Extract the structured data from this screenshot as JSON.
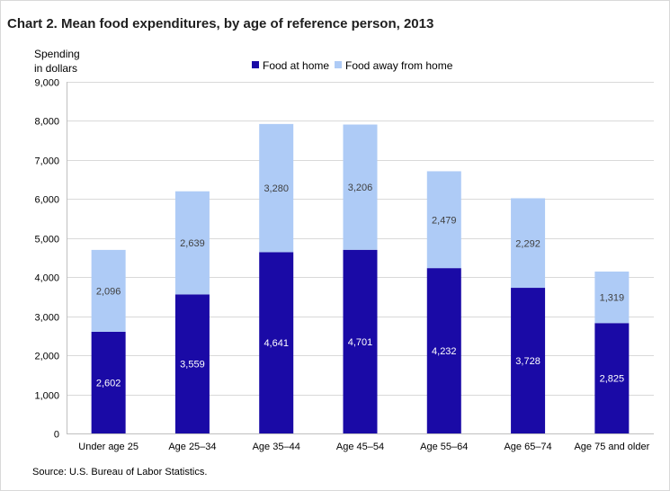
{
  "chart_data": {
    "type": "bar",
    "stacked": true,
    "title": "Chart 2. Mean food expenditures, by age of reference person, 2013",
    "ylabel_lines": [
      "Spending",
      "in dollars"
    ],
    "xlabel": "",
    "ylim": [
      0,
      9000
    ],
    "ytick_step": 1000,
    "yticks": [
      "0",
      "1,000",
      "2,000",
      "3,000",
      "4,000",
      "5,000",
      "6,000",
      "7,000",
      "8,000",
      "9,000"
    ],
    "grid": true,
    "legend_position": "top-center",
    "categories": [
      "Under age 25",
      "Age 25–34",
      "Age 35–44",
      "Age 45–54",
      "Age 55–64",
      "Age 65–74",
      "Age 75 and older"
    ],
    "series": [
      {
        "name": "Food at home",
        "color": "#1a0aa6",
        "label_color": "#ffffff",
        "values": [
          2602,
          3559,
          4641,
          4701,
          4232,
          3728,
          2825
        ],
        "labels": [
          "2,602",
          "3,559",
          "4,641",
          "4,701",
          "4,232",
          "3,728",
          "2,825"
        ]
      },
      {
        "name": "Food away from home",
        "color": "#aecbf6",
        "label_color": "#404040",
        "values": [
          2096,
          2639,
          3280,
          3206,
          2479,
          2292,
          1319
        ],
        "labels": [
          "2,096",
          "2,639",
          "3,280",
          "3,206",
          "2,479",
          "2,292",
          "1,319"
        ]
      }
    ],
    "source": "Source: U.S. Bureau of Labor Statistics."
  }
}
